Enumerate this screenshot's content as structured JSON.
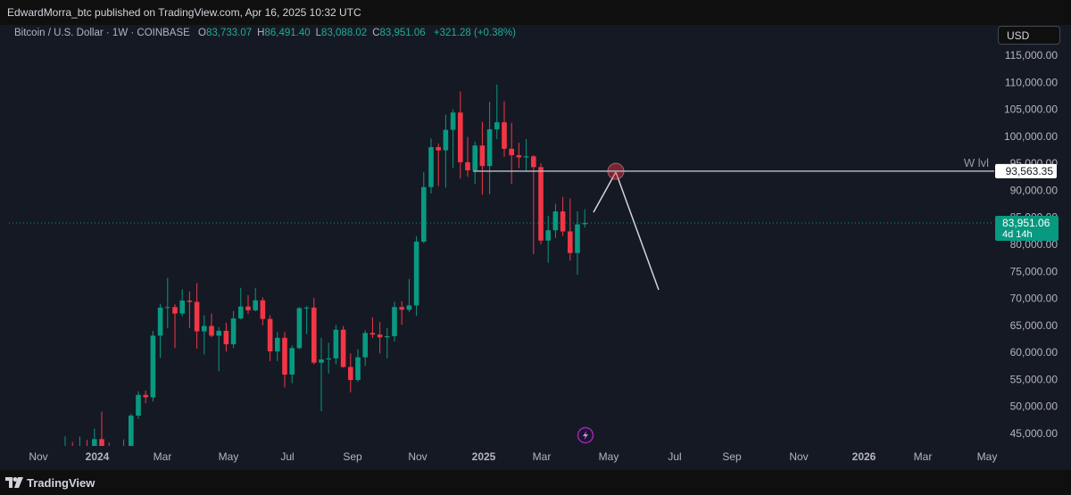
{
  "header": {
    "publisher_line": "EdwardMorra_btc published on TradingView.com, Apr 16, 2025 10:32 UTC"
  },
  "footer": {
    "brand": "TradingView"
  },
  "chart_data": {
    "type": "candlestick",
    "symbol": "Bitcoin / U.S. Dollar · 1W · COINBASE",
    "ohlc_legend": [
      {
        "key": "O",
        "value": "83,733.07"
      },
      {
        "key": "H",
        "value": "86,491.40"
      },
      {
        "key": "L",
        "value": "83,088.02"
      },
      {
        "key": "C",
        "value": "83,951.06"
      }
    ],
    "change": "+321.28 (+0.38%)",
    "currency": "USD",
    "up_color": "#089981",
    "down_color": "#f23645",
    "grid": false,
    "categories": [
      null,
      null,
      null,
      null,
      null,
      null,
      null,
      null,
      null,
      null,
      null,
      null,
      null,
      null,
      null,
      null,
      null,
      null,
      null,
      null,
      null,
      null,
      null,
      null,
      null,
      null,
      null,
      null,
      null,
      null,
      null,
      null,
      null,
      null,
      null,
      null,
      null,
      null,
      null,
      null,
      null,
      null,
      null,
      null,
      null,
      null,
      null,
      null,
      null,
      null,
      null,
      null,
      null,
      null,
      null,
      null,
      null,
      null,
      null,
      null,
      null,
      null,
      null,
      null,
      null,
      null,
      null,
      null,
      null,
      null,
      null,
      null
    ],
    "open": [
      39970,
      41950,
      41350,
      42560,
      42280,
      43950,
      41740,
      41600,
      42000,
      42580,
      48300,
      52140,
      51700,
      63100,
      68300,
      68400,
      67200,
      69600,
      69350,
      63900,
      64900,
      63100,
      64000,
      61500,
      66300,
      68500,
      67800,
      69650,
      66200,
      60200,
      62700,
      55900,
      60800,
      68200,
      68300,
      58100,
      58700,
      58900,
      64200,
      57300,
      54900,
      59100,
      63600,
      63300,
      62800,
      63000,
      68400,
      67900,
      68700,
      80500,
      90600,
      98000,
      97400,
      101200,
      104400,
      95200,
      93700,
      98300,
      94500,
      101300,
      102600,
      97700,
      96500,
      96100,
      96300,
      94300,
      80700,
      82600,
      86100,
      82400,
      78400,
      83733.07
    ],
    "high": [
      44490,
      43440,
      44400,
      43800,
      45900,
      49050,
      43300,
      42200,
      43900,
      48600,
      52800,
      52950,
      64000,
      69000,
      73800,
      68900,
      71700,
      71300,
      72800,
      66900,
      67200,
      64700,
      65500,
      67700,
      71950,
      70600,
      71950,
      70200,
      66900,
      63800,
      63800,
      61300,
      68400,
      68600,
      70100,
      62700,
      61800,
      65100,
      64900,
      59800,
      60600,
      64100,
      66500,
      65600,
      64500,
      69400,
      69500,
      73600,
      81500,
      93400,
      99600,
      98700,
      104000,
      105000,
      108300,
      99900,
      99000,
      102700,
      106400,
      109600,
      106500,
      102500,
      98800,
      99500,
      96500,
      95000,
      85300,
      87500,
      88800,
      88500,
      86100,
      86491.4
    ],
    "low": [
      39280,
      40190,
      40550,
      41560,
      40750,
      41500,
      40600,
      38500,
      41900,
      42260,
      47700,
      50600,
      50900,
      59000,
      64500,
      60800,
      66700,
      64500,
      60700,
      59600,
      62800,
      56500,
      60200,
      60800,
      66100,
      67100,
      67600,
      65000,
      58400,
      58400,
      53500,
      54300,
      60600,
      63400,
      57800,
      49100,
      56100,
      57800,
      57200,
      52600,
      54600,
      57500,
      62700,
      59800,
      58900,
      62000,
      65100,
      67500,
      66800,
      80200,
      89400,
      90800,
      90500,
      94200,
      92200,
      92500,
      91200,
      89200,
      89300,
      99500,
      96200,
      91200,
      94100,
      93400,
      78200,
      80000,
      76600,
      81200,
      81600,
      77000,
      74400,
      83088.02
    ],
    "close": [
      41950,
      41350,
      42560,
      42280,
      43950,
      41740,
      41600,
      42000,
      42580,
      48300,
      52140,
      51700,
      63100,
      68300,
      68400,
      67200,
      69600,
      69350,
      63900,
      64900,
      63100,
      64000,
      61500,
      66300,
      68500,
      67800,
      69650,
      66200,
      60200,
      62700,
      55900,
      60800,
      68200,
      68300,
      58100,
      58700,
      58900,
      64200,
      57300,
      54900,
      59100,
      63600,
      63300,
      62800,
      63000,
      68400,
      67900,
      68700,
      80500,
      90600,
      98000,
      97400,
      101200,
      104400,
      95200,
      93700,
      98300,
      94500,
      101300,
      102600,
      97700,
      96500,
      96100,
      96300,
      94300,
      80700,
      82600,
      86100,
      82400,
      78400,
      83700,
      83951.06
    ],
    "ylim": [
      42690,
      120610
    ],
    "yticks": [
      {
        "value": 45000,
        "label": "45,000.00"
      },
      {
        "value": 50000,
        "label": "50,000.00"
      },
      {
        "value": 55000,
        "label": "55,000.00"
      },
      {
        "value": 60000,
        "label": "60,000.00"
      },
      {
        "value": 65000,
        "label": "65,000.00"
      },
      {
        "value": 70000,
        "label": "70,000.00"
      },
      {
        "value": 75000,
        "label": "75,000.00"
      },
      {
        "value": 80000,
        "label": "80,000.00"
      },
      {
        "value": 85000,
        "label": "85,000.00"
      },
      {
        "value": 90000,
        "label": "90,000.00"
      },
      {
        "value": 95000,
        "label": "95,000.00"
      },
      {
        "value": 100000,
        "label": "100,000.00"
      },
      {
        "value": 105000,
        "label": "105,000.00"
      },
      {
        "value": 110000,
        "label": "110,000.00"
      },
      {
        "value": 115000,
        "label": "115,000.00"
      }
    ],
    "xtick_labels": [
      "Nov",
      "2024",
      "Mar",
      "May",
      "Jul",
      "Sep",
      "Nov",
      "2025",
      "Mar",
      "May",
      "Jul",
      "Sep",
      "Nov",
      "2026",
      "Mar",
      "May"
    ],
    "level": {
      "name": "W lvl",
      "value": 93563.35,
      "label": "93,563.35"
    },
    "price_line": {
      "value": 83951.06,
      "label": "83,951.06",
      "countdown": "4d 14h"
    }
  }
}
